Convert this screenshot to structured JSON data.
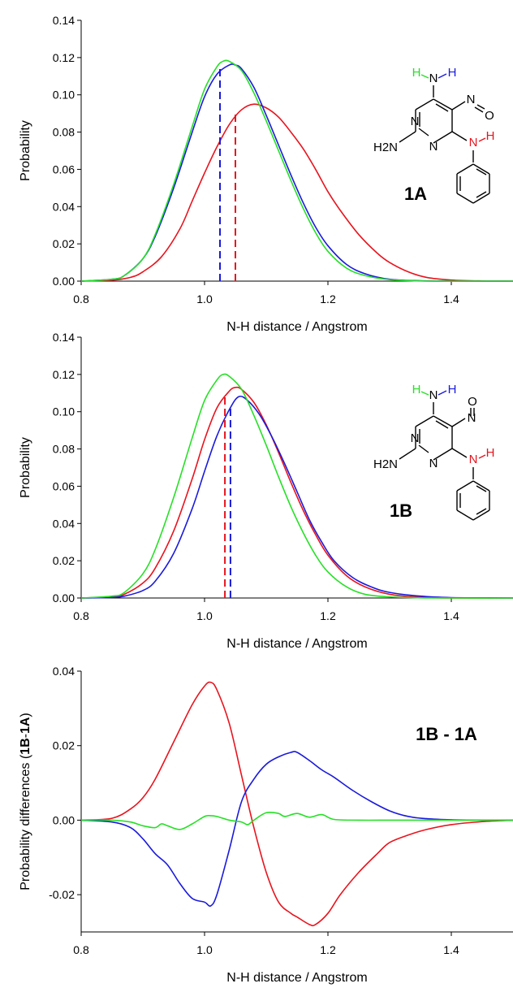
{
  "colors": {
    "red": "#e8141e",
    "blue": "#1a1adc",
    "green": "#26e026",
    "black": "#000000"
  },
  "chart_data": [
    {
      "type": "line",
      "panel_label": "1A",
      "xlabel": "N-H distance / Angstrom",
      "ylabel": "Probability",
      "xlim": [
        0.8,
        1.5
      ],
      "ylim": [
        0,
        0.14
      ],
      "xticks": [
        "0.8",
        "1.0",
        "1.2",
        "1.4"
      ],
      "yticks": [
        "0.00",
        "0.02",
        "0.04",
        "0.06",
        "0.08",
        "0.10",
        "0.12",
        "0.14"
      ],
      "xtick_values": [
        0.8,
        1.0,
        1.2,
        1.4
      ],
      "ytick_values": [
        0,
        0.02,
        0.04,
        0.06,
        0.08,
        0.1,
        0.12,
        0.14
      ],
      "series": [
        {
          "color": "red",
          "x": [
            0.8,
            0.85,
            0.88,
            0.9,
            0.93,
            0.96,
            0.98,
            1.0,
            1.02,
            1.04,
            1.06,
            1.08,
            1.1,
            1.12,
            1.14,
            1.16,
            1.18,
            1.2,
            1.22,
            1.25,
            1.28,
            1.3,
            1.33,
            1.36,
            1.4,
            1.45,
            1.5
          ],
          "y": [
            0,
            0.0005,
            0.002,
            0.005,
            0.013,
            0.028,
            0.043,
            0.058,
            0.072,
            0.084,
            0.092,
            0.095,
            0.093,
            0.088,
            0.08,
            0.071,
            0.06,
            0.048,
            0.038,
            0.025,
            0.015,
            0.01,
            0.005,
            0.002,
            0.0006,
            0.0001,
            0
          ]
        },
        {
          "color": "blue",
          "x": [
            0.8,
            0.85,
            0.87,
            0.9,
            0.92,
            0.95,
            0.98,
            1.0,
            1.02,
            1.04,
            1.05,
            1.06,
            1.08,
            1.1,
            1.12,
            1.14,
            1.16,
            1.18,
            1.2,
            1.23,
            1.26,
            1.3,
            1.35,
            1.4,
            1.5
          ],
          "y": [
            0,
            0.001,
            0.003,
            0.012,
            0.024,
            0.05,
            0.08,
            0.099,
            0.111,
            0.116,
            0.116,
            0.114,
            0.104,
            0.089,
            0.073,
            0.057,
            0.042,
            0.029,
            0.019,
            0.009,
            0.004,
            0.001,
            0.0002,
            0,
            0
          ]
        },
        {
          "color": "green",
          "x": [
            0.8,
            0.85,
            0.87,
            0.9,
            0.92,
            0.95,
            0.98,
            1.0,
            1.02,
            1.03,
            1.04,
            1.06,
            1.08,
            1.1,
            1.12,
            1.14,
            1.16,
            1.18,
            1.2,
            1.23,
            1.26,
            1.3,
            1.35,
            1.4,
            1.5
          ],
          "y": [
            0,
            0.001,
            0.003,
            0.012,
            0.025,
            0.052,
            0.083,
            0.103,
            0.115,
            0.118,
            0.118,
            0.113,
            0.101,
            0.086,
            0.07,
            0.054,
            0.039,
            0.026,
            0.016,
            0.007,
            0.003,
            0.0008,
            0.0001,
            0,
            0
          ]
        }
      ],
      "dashed_markers": [
        {
          "color": "blue",
          "x": 1.025,
          "y": 0.114
        },
        {
          "color": "red",
          "x": 1.05,
          "y": 0.091
        }
      ],
      "molecule": {
        "labels": [
          "H",
          "N",
          "H",
          "N",
          "O",
          "N",
          "H",
          "H2N",
          "N",
          "N"
        ]
      }
    },
    {
      "type": "line",
      "panel_label": "1B",
      "xlabel": "N-H distance / Angstrom",
      "ylabel": "Probability",
      "xlim": [
        0.8,
        1.5
      ],
      "ylim": [
        0,
        0.14
      ],
      "xticks": [
        "0.8",
        "1.0",
        "1.2",
        "1.4"
      ],
      "yticks": [
        "0.00",
        "0.02",
        "0.04",
        "0.06",
        "0.08",
        "0.10",
        "0.12",
        "0.14"
      ],
      "xtick_values": [
        0.8,
        1.0,
        1.2,
        1.4
      ],
      "ytick_values": [
        0,
        0.02,
        0.04,
        0.06,
        0.08,
        0.1,
        0.12,
        0.14
      ],
      "series": [
        {
          "color": "red",
          "x": [
            0.8,
            0.85,
            0.87,
            0.9,
            0.92,
            0.95,
            0.98,
            1.0,
            1.02,
            1.04,
            1.05,
            1.06,
            1.08,
            1.1,
            1.12,
            1.14,
            1.16,
            1.18,
            1.2,
            1.23,
            1.26,
            1.3,
            1.35,
            1.4,
            1.5
          ],
          "y": [
            0,
            0.0005,
            0.002,
            0.008,
            0.016,
            0.036,
            0.064,
            0.085,
            0.102,
            0.111,
            0.113,
            0.112,
            0.105,
            0.093,
            0.078,
            0.062,
            0.047,
            0.034,
            0.023,
            0.012,
            0.006,
            0.002,
            0.0004,
            0,
            0
          ]
        },
        {
          "color": "blue",
          "x": [
            0.8,
            0.85,
            0.87,
            0.9,
            0.92,
            0.95,
            0.98,
            1.0,
            1.02,
            1.04,
            1.055,
            1.07,
            1.09,
            1.11,
            1.13,
            1.15,
            1.17,
            1.19,
            1.21,
            1.24,
            1.27,
            1.3,
            1.35,
            1.4,
            1.46,
            1.5
          ],
          "y": [
            0,
            0.0003,
            0.001,
            0.004,
            0.009,
            0.024,
            0.048,
            0.068,
            0.087,
            0.101,
            0.108,
            0.106,
            0.098,
            0.086,
            0.072,
            0.057,
            0.042,
            0.03,
            0.02,
            0.011,
            0.006,
            0.003,
            0.001,
            0.0002,
            0.0001,
            0
          ]
        },
        {
          "color": "green",
          "x": [
            0.8,
            0.85,
            0.87,
            0.9,
            0.92,
            0.95,
            0.98,
            1.0,
            1.02,
            1.03,
            1.04,
            1.06,
            1.08,
            1.1,
            1.12,
            1.14,
            1.16,
            1.18,
            1.2,
            1.23,
            1.26,
            1.3,
            1.35,
            1.4,
            1.5
          ],
          "y": [
            0,
            0.001,
            0.003,
            0.013,
            0.026,
            0.054,
            0.086,
            0.106,
            0.117,
            0.12,
            0.119,
            0.112,
            0.098,
            0.082,
            0.065,
            0.049,
            0.035,
            0.023,
            0.014,
            0.006,
            0.002,
            0.0006,
            0.0001,
            0,
            0
          ]
        }
      ],
      "dashed_markers": [
        {
          "color": "red",
          "x": 1.033,
          "y": 0.108
        },
        {
          "color": "blue",
          "x": 1.042,
          "y": 0.103
        }
      ],
      "molecule": {
        "labels": [
          "H",
          "N",
          "H",
          "O",
          "N",
          "N",
          "H",
          "H2N",
          "N",
          "N"
        ]
      }
    },
    {
      "type": "line",
      "panel_label": "1B - 1A",
      "xlabel": "N-H distance / Angstrom",
      "ylabel": "Probability differences (",
      "ylabel_bold": "1B",
      "ylabel_mid": "-",
      "ylabel_bold2": "1A",
      "ylabel_end": ")",
      "xlim": [
        0.8,
        1.5
      ],
      "ylim": [
        -0.03,
        0.04
      ],
      "xticks": [
        "0.8",
        "1.0",
        "1.2",
        "1.4"
      ],
      "yticks": [
        "-0.02",
        "0.00",
        "0.02",
        "0.04"
      ],
      "xtick_values": [
        0.8,
        1.0,
        1.2,
        1.4
      ],
      "ytick_values": [
        -0.02,
        0,
        0.02,
        0.04
      ],
      "series": [
        {
          "color": "red",
          "x": [
            0.8,
            0.85,
            0.88,
            0.9,
            0.92,
            0.95,
            0.98,
            1.0,
            1.01,
            1.02,
            1.04,
            1.06,
            1.08,
            1.1,
            1.12,
            1.14,
            1.15,
            1.17,
            1.18,
            1.2,
            1.22,
            1.25,
            1.28,
            1.3,
            1.33,
            1.36,
            1.4,
            1.45,
            1.5
          ],
          "y": [
            0,
            0.0005,
            0.003,
            0.006,
            0.011,
            0.021,
            0.031,
            0.036,
            0.037,
            0.035,
            0.026,
            0.012,
            -0.002,
            -0.014,
            -0.022,
            -0.025,
            -0.026,
            -0.028,
            -0.028,
            -0.025,
            -0.02,
            -0.014,
            -0.009,
            -0.006,
            -0.004,
            -0.0025,
            -0.0012,
            -0.0004,
            0
          ]
        },
        {
          "color": "blue",
          "x": [
            0.8,
            0.85,
            0.88,
            0.9,
            0.92,
            0.94,
            0.96,
            0.98,
            1.0,
            1.01,
            1.02,
            1.04,
            1.06,
            1.08,
            1.1,
            1.12,
            1.14,
            1.15,
            1.17,
            1.19,
            1.21,
            1.24,
            1.27,
            1.3,
            1.33,
            1.36,
            1.4,
            1.45,
            1.5
          ],
          "y": [
            0,
            -0.0005,
            -0.002,
            -0.005,
            -0.009,
            -0.012,
            -0.017,
            -0.021,
            -0.022,
            -0.023,
            -0.02,
            -0.008,
            0.005,
            0.011,
            0.015,
            0.017,
            0.0182,
            0.0182,
            0.016,
            0.0135,
            0.0115,
            0.008,
            0.005,
            0.0025,
            0.001,
            0.0004,
            0.0001,
            0,
            0
          ]
        },
        {
          "color": "green",
          "x": [
            0.8,
            0.85,
            0.88,
            0.9,
            0.92,
            0.93,
            0.94,
            0.96,
            0.98,
            1.0,
            1.01,
            1.02,
            1.04,
            1.06,
            1.07,
            1.08,
            1.1,
            1.12,
            1.13,
            1.15,
            1.17,
            1.19,
            1.21,
            1.25,
            1.3,
            1.35,
            1.4,
            1.45,
            1.5
          ],
          "y": [
            0,
            0,
            -0.0005,
            -0.0015,
            -0.002,
            -0.001,
            -0.0015,
            -0.0025,
            -0.001,
            0.001,
            0.0012,
            0.001,
            0,
            -0.0005,
            -0.0012,
            0,
            0.002,
            0.0018,
            0.001,
            0.0018,
            0.0008,
            0.0015,
            0.0002,
            0,
            0,
            0,
            0,
            0,
            0
          ]
        }
      ]
    }
  ]
}
